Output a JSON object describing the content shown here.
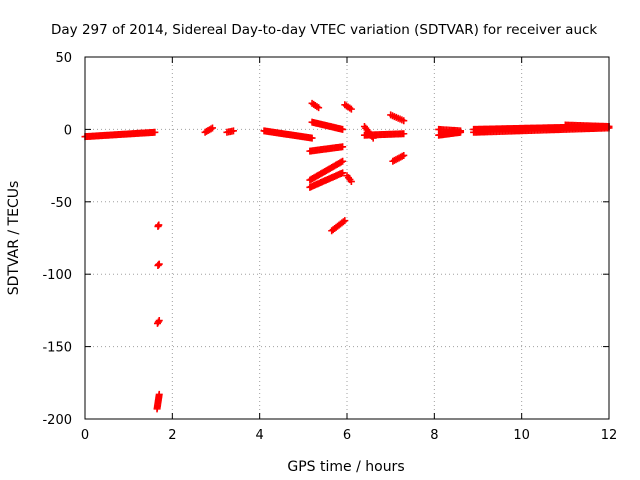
{
  "chart_data": {
    "type": "scatter",
    "title": "Day 297 of 2014, Sidereal Day-to-day VTEC variation (SDTVAR) for receiver auck",
    "xlabel": "GPS time / hours",
    "ylabel": "SDTVAR / TECUs",
    "xlim": [
      0,
      12
    ],
    "ylim": [
      -200,
      50
    ],
    "x_ticks": [
      0,
      2,
      4,
      6,
      8,
      10,
      12
    ],
    "y_ticks": [
      50,
      0,
      -50,
      -100,
      -150,
      -200
    ],
    "grid": true,
    "marker_color": "#ff0000",
    "segments": [
      {
        "x0": 0.0,
        "y0": -5,
        "x1": 1.6,
        "y1": -2,
        "n": 55
      },
      {
        "x0": 1.67,
        "y0": -67,
        "x1": 1.69,
        "y1": -66,
        "n": 3
      },
      {
        "x0": 1.67,
        "y0": -94,
        "x1": 1.7,
        "y1": -93,
        "n": 3
      },
      {
        "x0": 1.66,
        "y0": -134,
        "x1": 1.7,
        "y1": -132,
        "n": 3
      },
      {
        "x0": 1.65,
        "y0": -193,
        "x1": 1.7,
        "y1": -183,
        "n": 12
      },
      {
        "x0": 2.75,
        "y0": -2,
        "x1": 2.92,
        "y1": 1,
        "n": 6
      },
      {
        "x0": 3.25,
        "y0": -2,
        "x1": 3.4,
        "y1": -1,
        "n": 5
      },
      {
        "x0": 4.1,
        "y0": -1,
        "x1": 5.2,
        "y1": -6,
        "n": 40
      },
      {
        "x0": 5.2,
        "y0": 18,
        "x1": 5.35,
        "y1": 15,
        "n": 5
      },
      {
        "x0": 5.2,
        "y0": 5,
        "x1": 5.9,
        "y1": 0,
        "n": 25
      },
      {
        "x0": 5.15,
        "y0": -15,
        "x1": 5.9,
        "y1": -12,
        "n": 25
      },
      {
        "x0": 5.15,
        "y0": -35,
        "x1": 5.9,
        "y1": -22,
        "n": 25
      },
      {
        "x0": 5.15,
        "y0": -40,
        "x1": 5.9,
        "y1": -30,
        "n": 25
      },
      {
        "x0": 5.65,
        "y0": -70,
        "x1": 5.95,
        "y1": -63,
        "n": 10
      },
      {
        "x0": 5.95,
        "y0": 17,
        "x1": 6.1,
        "y1": 14,
        "n": 5
      },
      {
        "x0": 6.0,
        "y0": -32,
        "x1": 6.1,
        "y1": -36,
        "n": 4
      },
      {
        "x0": 6.4,
        "y0": 2,
        "x1": 6.6,
        "y1": -6,
        "n": 8
      },
      {
        "x0": 6.4,
        "y0": -4,
        "x1": 7.3,
        "y1": -3,
        "n": 30
      },
      {
        "x0": 7.0,
        "y0": 10,
        "x1": 7.3,
        "y1": 6,
        "n": 8
      },
      {
        "x0": 7.05,
        "y0": -22,
        "x1": 7.3,
        "y1": -18,
        "n": 8
      },
      {
        "x0": 8.1,
        "y0": -4,
        "x1": 8.6,
        "y1": -2,
        "n": 20
      },
      {
        "x0": 8.1,
        "y0": 0,
        "x1": 8.6,
        "y1": -1,
        "n": 15
      },
      {
        "x0": 8.9,
        "y0": 0,
        "x1": 12.0,
        "y1": 2,
        "n": 110
      },
      {
        "x0": 8.9,
        "y0": -2,
        "x1": 12.0,
        "y1": 1,
        "n": 90
      },
      {
        "x0": 11.0,
        "y0": 3,
        "x1": 12.0,
        "y1": 2,
        "n": 30
      }
    ]
  }
}
